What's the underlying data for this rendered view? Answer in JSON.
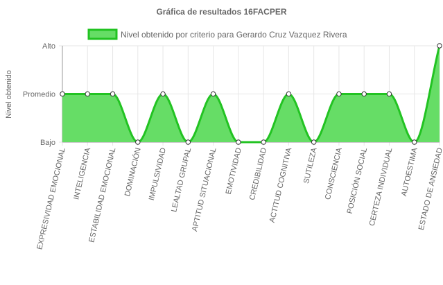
{
  "chart_data": {
    "type": "line",
    "title": "Gráfica de resultados 16FACPER",
    "ylabel": "Nivel obtenido",
    "xlabel": "",
    "y_tick_labels": [
      "Bajo",
      "Promedio",
      "Alto"
    ],
    "ylim": [
      0,
      2
    ],
    "grid": true,
    "legend_position": "top",
    "categories": [
      "EXPRESIVIDAD EMOCIONAL",
      "INTELIGENCIA",
      "ESTABILIDAD EMOCIONAL",
      "DOMINACIÓN",
      "IMPULSIVIDAD",
      "LEALTAD GRUPAL",
      "APTITUD SITUACIONAL",
      "EMOTIVIDAD",
      "CREDIBILIDAD",
      "ACTITUD COGNITIVA",
      "SUTILEZA",
      "CONSCIENCIA",
      "POSICIÓN SOCIAL",
      "CERTEZA INDIVIDUAL",
      "AUTOESTIMA",
      "ESTADO DE ANSIEDAD"
    ],
    "series": [
      {
        "name": "Nivel obtenido por criterio para Gerardo Cruz Vazquez Rivera",
        "values": [
          1,
          1,
          1,
          0,
          1,
          0,
          1,
          0,
          0,
          1,
          0,
          1,
          1,
          1,
          0,
          2
        ],
        "fill": true
      }
    ],
    "colors": {
      "line": "#22c322",
      "fill": "#66dd66",
      "grid": "#e6e6e6",
      "axis": "#999999"
    }
  }
}
